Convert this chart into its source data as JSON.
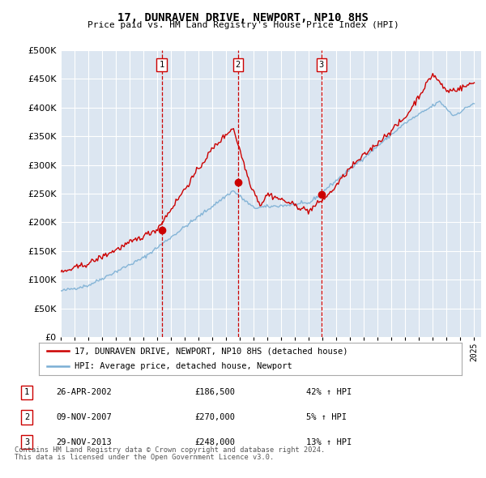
{
  "title": "17, DUNRAVEN DRIVE, NEWPORT, NP10 8HS",
  "subtitle": "Price paid vs. HM Land Registry's House Price Index (HPI)",
  "transactions": [
    {
      "num": 1,
      "date": "26-APR-2002",
      "price": "£186,500",
      "pct": "42% ↑ HPI",
      "x_year": 2002.32,
      "y_val": 186500
    },
    {
      "num": 2,
      "date": "09-NOV-2007",
      "price": "£270,000",
      "pct": "5% ↑ HPI",
      "x_year": 2007.86,
      "y_val": 270000
    },
    {
      "num": 3,
      "date": "29-NOV-2013",
      "price": "£248,000",
      "pct": "13% ↑ HPI",
      "x_year": 2013.91,
      "y_val": 248000
    }
  ],
  "legend_line1": "17, DUNRAVEN DRIVE, NEWPORT, NP10 8HS (detached house)",
  "legend_line2": "HPI: Average price, detached house, Newport",
  "footer1": "Contains HM Land Registry data © Crown copyright and database right 2024.",
  "footer2": "This data is licensed under the Open Government Licence v3.0.",
  "hpi_color": "#7bafd4",
  "price_color": "#cc0000",
  "dashed_color": "#cc0000",
  "background_color": "#dce6f1",
  "ylim": [
    0,
    500000
  ],
  "yticks": [
    0,
    50000,
    100000,
    150000,
    200000,
    250000,
    300000,
    350000,
    400000,
    450000,
    500000
  ],
  "xmin": 1995,
  "xmax": 2025.5
}
